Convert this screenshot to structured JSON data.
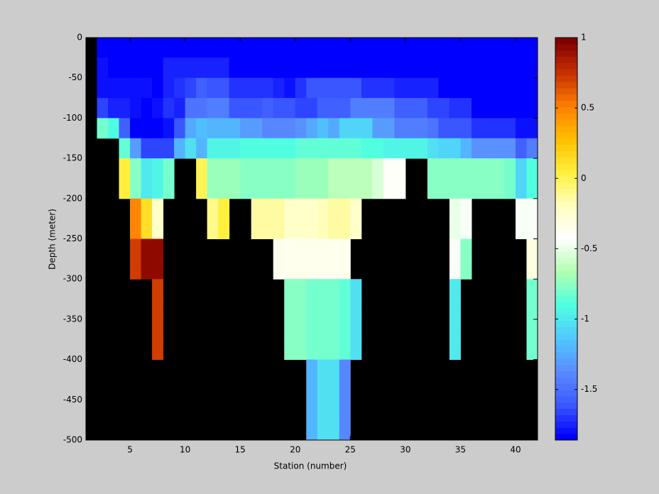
{
  "chart_data": {
    "type": "heatmap",
    "xlabel": "Station (number)",
    "ylabel": "Depth (meter)",
    "xlim": [
      1,
      42
    ],
    "ylim": [
      -500,
      0
    ],
    "xticks": [
      5,
      10,
      15,
      20,
      25,
      30,
      35,
      40
    ],
    "yticks": [
      -500,
      -450,
      -400,
      -350,
      -300,
      -250,
      -200,
      -150,
      -100,
      -50,
      0
    ],
    "clim": [
      -1.86,
      1
    ],
    "cticks": [
      -1.5,
      -1,
      -0.5,
      0,
      0.5,
      1
    ],
    "colormap": [
      "#0000ff",
      "#3c5aff",
      "#5a8cff",
      "#50c8ff",
      "#50ffe0",
      "#b0ffb0",
      "#ffffff",
      "#ffffc0",
      "#fff040",
      "#ffc000",
      "#ff8000",
      "#c83200",
      "#800000"
    ],
    "background": "#000000",
    "x": [
      2,
      3,
      4,
      5,
      6,
      7,
      8,
      9,
      10,
      11,
      12,
      13,
      14,
      15,
      16,
      17,
      18,
      19,
      20,
      21,
      22,
      23,
      24,
      25,
      26,
      27,
      28,
      29,
      30,
      31,
      32,
      33,
      34,
      35,
      36,
      37,
      38,
      39,
      40,
      41
    ],
    "y": [
      0,
      -25,
      -50,
      -75,
      -100,
      -125,
      -150,
      -175,
      -200,
      -225,
      -250,
      -275,
      -300,
      -325,
      -350,
      -375,
      -400,
      -425,
      -450,
      -475
    ],
    "z": [
      [
        -1.85,
        -1.85,
        -1.85,
        -1.85,
        -1.85,
        -1.85,
        -1.85,
        -1.85,
        -1.85,
        -1.85,
        -1.85,
        -1.85,
        -1.85,
        -1.85,
        -1.85,
        -1.85,
        -1.85,
        -1.85,
        -1.85,
        -1.85,
        -1.85,
        -1.85,
        -1.85,
        -1.85,
        -1.85,
        -1.85,
        -1.85,
        -1.85,
        -1.85,
        -1.85,
        -1.85,
        -1.85,
        -1.85,
        -1.85,
        -1.85,
        -1.85,
        -1.85,
        -1.85,
        -1.85,
        -1.85
      ],
      [
        -1.8,
        -1.85,
        -1.85,
        -1.85,
        -1.85,
        -1.85,
        -1.75,
        -1.75,
        -1.75,
        -1.75,
        -1.75,
        -1.75,
        -1.85,
        -1.85,
        -1.85,
        -1.85,
        -1.85,
        -1.85,
        -1.85,
        -1.85,
        -1.85,
        -1.85,
        -1.85,
        -1.85,
        -1.85,
        -1.85,
        -1.85,
        -1.85,
        -1.85,
        -1.85,
        -1.85,
        -1.85,
        -1.85,
        -1.85,
        -1.85,
        -1.85,
        -1.85,
        -1.85,
        -1.85,
        -1.85
      ],
      [
        -1.8,
        -1.8,
        -1.8,
        -1.8,
        -1.8,
        -1.85,
        -1.75,
        -1.7,
        -1.65,
        -1.55,
        -1.6,
        -1.6,
        -1.7,
        -1.7,
        -1.7,
        -1.7,
        -1.75,
        -1.8,
        -1.7,
        -1.6,
        -1.6,
        -1.6,
        -1.6,
        -1.6,
        -1.7,
        -1.7,
        -1.7,
        -1.75,
        -1.75,
        -1.75,
        -1.75,
        -1.85,
        -1.85,
        -1.85,
        -1.85,
        -1.85,
        -1.85,
        -1.85,
        -1.85,
        -1.85
      ],
      [
        -1.65,
        -1.75,
        -1.75,
        -1.8,
        -1.85,
        -1.8,
        -1.7,
        -1.75,
        -1.5,
        -1.5,
        -1.45,
        -1.45,
        -1.6,
        -1.6,
        -1.6,
        -1.55,
        -1.6,
        -1.6,
        -1.65,
        -1.65,
        -1.55,
        -1.55,
        -1.55,
        -1.45,
        -1.45,
        -1.45,
        -1.45,
        -1.55,
        -1.55,
        -1.55,
        -1.65,
        -1.65,
        -1.7,
        -1.7,
        -1.85,
        -1.85,
        -1.85,
        -1.85,
        -1.85,
        -1.85
      ],
      [
        -0.8,
        -0.9,
        -1.55,
        -1.85,
        -1.85,
        -1.85,
        -1.8,
        -1.6,
        -1.25,
        -1.15,
        -1.2,
        -1.2,
        -1.2,
        -1.3,
        -1.3,
        -1.4,
        -1.4,
        -1.4,
        -1.35,
        -1.25,
        -1.15,
        -1.25,
        -1.1,
        -1.1,
        -1.1,
        -1.3,
        -1.3,
        -1.45,
        -1.45,
        -1.45,
        -1.5,
        -1.6,
        -1.6,
        -1.6,
        -1.7,
        -1.7,
        -1.7,
        -1.7,
        -1.8,
        -1.8
      ],
      [
        null,
        null,
        -0.85,
        -1.3,
        -1.65,
        -1.65,
        -1.65,
        -1.2,
        -1.05,
        -1.2,
        -0.95,
        -0.95,
        -0.95,
        -0.9,
        -0.9,
        -0.9,
        -0.9,
        -0.9,
        -0.85,
        -0.85,
        -0.85,
        -0.85,
        -0.85,
        -0.85,
        -0.9,
        -0.9,
        -0.95,
        -0.95,
        -0.95,
        -0.95,
        -1.05,
        -1.1,
        -1.1,
        -1.2,
        -1.35,
        -1.35,
        -1.35,
        -1.35,
        -1.55,
        -1.45
      ],
      [
        null,
        null,
        0.05,
        -0.75,
        -1.0,
        -0.95,
        -0.8,
        null,
        null,
        0.0,
        -0.7,
        -0.7,
        -0.7,
        -0.75,
        -0.75,
        -0.75,
        -0.75,
        -0.75,
        -0.7,
        -0.7,
        -0.7,
        -0.65,
        -0.65,
        -0.65,
        -0.65,
        -0.55,
        -0.4,
        -0.4,
        null,
        null,
        -0.75,
        -0.75,
        -0.75,
        -0.75,
        -0.75,
        -0.75,
        -0.75,
        -0.8,
        -1.1,
        -0.9
      ],
      [
        null,
        null,
        0.05,
        -0.75,
        -1.0,
        -0.95,
        -0.8,
        null,
        null,
        0.0,
        -0.7,
        -0.7,
        -0.7,
        -0.75,
        -0.75,
        -0.75,
        -0.75,
        -0.75,
        -0.7,
        -0.7,
        -0.7,
        -0.65,
        -0.65,
        -0.65,
        -0.65,
        -0.55,
        -0.4,
        -0.4,
        null,
        null,
        -0.75,
        -0.75,
        -0.75,
        -0.75,
        -0.75,
        -0.75,
        -0.75,
        -0.8,
        -1.1,
        -0.9
      ],
      [
        null,
        null,
        null,
        0.5,
        0.15,
        -0.25,
        null,
        null,
        null,
        null,
        -0.1,
        0.05,
        null,
        null,
        -0.15,
        -0.15,
        -0.15,
        -0.25,
        -0.25,
        -0.25,
        -0.2,
        -0.15,
        -0.15,
        -0.25,
        null,
        null,
        null,
        null,
        null,
        null,
        null,
        null,
        -0.5,
        -0.45,
        null,
        null,
        null,
        null,
        -0.45,
        -0.45
      ],
      [
        null,
        null,
        null,
        0.5,
        0.15,
        -0.25,
        null,
        null,
        null,
        null,
        -0.1,
        0.05,
        null,
        null,
        -0.15,
        -0.15,
        -0.15,
        -0.25,
        -0.25,
        -0.25,
        -0.2,
        -0.15,
        -0.15,
        -0.25,
        null,
        null,
        null,
        null,
        null,
        null,
        null,
        null,
        -0.5,
        -0.45,
        null,
        null,
        null,
        null,
        -0.45,
        -0.45
      ],
      [
        null,
        null,
        null,
        0.7,
        0.95,
        0.95,
        null,
        null,
        null,
        null,
        null,
        null,
        null,
        null,
        null,
        null,
        -0.35,
        -0.35,
        -0.35,
        -0.35,
        -0.35,
        -0.35,
        -0.35,
        null,
        null,
        null,
        null,
        null,
        null,
        null,
        null,
        null,
        -0.45,
        -0.75,
        null,
        null,
        null,
        null,
        null,
        -0.3
      ],
      [
        null,
        null,
        null,
        0.7,
        0.95,
        0.95,
        null,
        null,
        null,
        null,
        null,
        null,
        null,
        null,
        null,
        null,
        -0.35,
        -0.35,
        -0.35,
        -0.35,
        -0.35,
        -0.35,
        -0.35,
        null,
        null,
        null,
        null,
        null,
        null,
        null,
        null,
        null,
        -0.45,
        -0.75,
        null,
        null,
        null,
        null,
        null,
        -0.3
      ],
      [
        null,
        null,
        null,
        null,
        null,
        0.72,
        null,
        null,
        null,
        null,
        null,
        null,
        null,
        null,
        null,
        null,
        null,
        -0.75,
        -0.75,
        -0.8,
        -0.8,
        -0.8,
        -0.85,
        -1.05,
        null,
        null,
        null,
        null,
        null,
        null,
        null,
        null,
        -1.0,
        null,
        null,
        null,
        null,
        null,
        null,
        -0.8
      ],
      [
        null,
        null,
        null,
        null,
        null,
        0.72,
        null,
        null,
        null,
        null,
        null,
        null,
        null,
        null,
        null,
        null,
        null,
        -0.75,
        -0.75,
        -0.8,
        -0.8,
        -0.8,
        -0.85,
        -1.05,
        null,
        null,
        null,
        null,
        null,
        null,
        null,
        null,
        -1.0,
        null,
        null,
        null,
        null,
        null,
        null,
        -0.8
      ],
      [
        null,
        null,
        null,
        null,
        null,
        0.72,
        null,
        null,
        null,
        null,
        null,
        null,
        null,
        null,
        null,
        null,
        null,
        -0.75,
        -0.75,
        -0.8,
        -0.8,
        -0.8,
        -0.85,
        -1.05,
        null,
        null,
        null,
        null,
        null,
        null,
        null,
        null,
        -1.0,
        null,
        null,
        null,
        null,
        null,
        null,
        -0.8
      ],
      [
        null,
        null,
        null,
        null,
        null,
        0.72,
        null,
        null,
        null,
        null,
        null,
        null,
        null,
        null,
        null,
        null,
        null,
        -0.75,
        -0.75,
        -0.8,
        -0.8,
        -0.8,
        -0.85,
        -1.05,
        null,
        null,
        null,
        null,
        null,
        null,
        null,
        null,
        -1.0,
        null,
        null,
        null,
        null,
        null,
        null,
        -0.8
      ],
      [
        null,
        null,
        null,
        null,
        null,
        null,
        null,
        null,
        null,
        null,
        null,
        null,
        null,
        null,
        null,
        null,
        null,
        null,
        null,
        -1.2,
        -1.05,
        -1.05,
        -1.4,
        null,
        null,
        null,
        null,
        null,
        null,
        null,
        null,
        null,
        null,
        null,
        null,
        null,
        null,
        null,
        null,
        null
      ],
      [
        null,
        null,
        null,
        null,
        null,
        null,
        null,
        null,
        null,
        null,
        null,
        null,
        null,
        null,
        null,
        null,
        null,
        null,
        null,
        -1.2,
        -1.05,
        -1.05,
        -1.4,
        null,
        null,
        null,
        null,
        null,
        null,
        null,
        null,
        null,
        null,
        null,
        null,
        null,
        null,
        null,
        null,
        null
      ],
      [
        null,
        null,
        null,
        null,
        null,
        null,
        null,
        null,
        null,
        null,
        null,
        null,
        null,
        null,
        null,
        null,
        null,
        null,
        null,
        -1.2,
        -1.05,
        -1.05,
        -1.4,
        null,
        null,
        null,
        null,
        null,
        null,
        null,
        null,
        null,
        null,
        null,
        null,
        null,
        null,
        null,
        null,
        null
      ],
      [
        null,
        null,
        null,
        null,
        null,
        null,
        null,
        null,
        null,
        null,
        null,
        null,
        null,
        null,
        null,
        null,
        null,
        null,
        null,
        -1.2,
        -1.05,
        -1.05,
        -1.4,
        null,
        null,
        null,
        null,
        null,
        null,
        null,
        null,
        null,
        null,
        null,
        null,
        null,
        null,
        null,
        null,
        null
      ]
    ]
  }
}
